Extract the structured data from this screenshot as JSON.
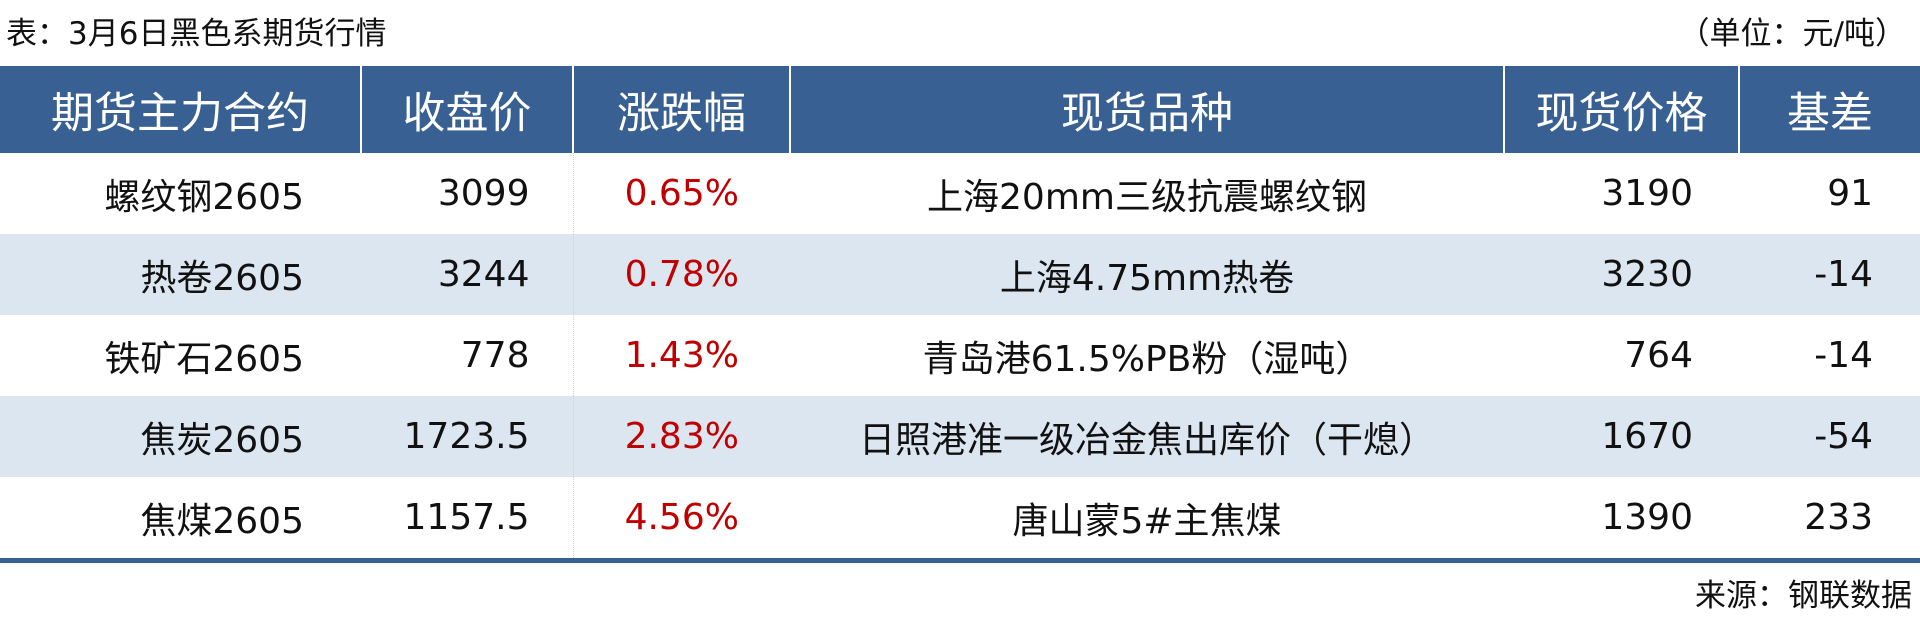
{
  "title": "表：3月6日黑色系期货行情",
  "unit": "（单位：元/吨）",
  "headers": [
    "期货主力合约",
    "收盘价",
    "涨跌幅",
    "现货品种",
    "现货价格",
    "基差"
  ],
  "rows": [
    {
      "contract": "螺纹钢2605",
      "close": "3099",
      "change": "0.65%",
      "spot": "上海20mm三级抗震螺纹钢",
      "spot_price": "3190",
      "basis": "91"
    },
    {
      "contract": "热卷2605",
      "close": "3244",
      "change": "0.78%",
      "spot": "上海4.75mm热卷",
      "spot_price": "3230",
      "basis": "-14"
    },
    {
      "contract": "铁矿石2605",
      "close": "778",
      "change": "1.43%",
      "spot": "青岛港61.5%PB粉（湿吨）",
      "spot_price": "764",
      "basis": "-14"
    },
    {
      "contract": "焦炭2605",
      "close": "1723.5",
      "change": "2.83%",
      "spot": "日照港准一级冶金焦出库价（干熄）",
      "spot_price": "1670",
      "basis": "-54"
    },
    {
      "contract": "焦煤2605",
      "close": "1157.5",
      "change": "4.56%",
      "spot": "唐山蒙5#主焦煤",
      "spot_price": "1390",
      "basis": "233"
    }
  ],
  "source": "来源：钢联数据",
  "colors": {
    "header_bg": "#386092",
    "alt_row": "#dce6f1",
    "change_text": "#c00000"
  }
}
